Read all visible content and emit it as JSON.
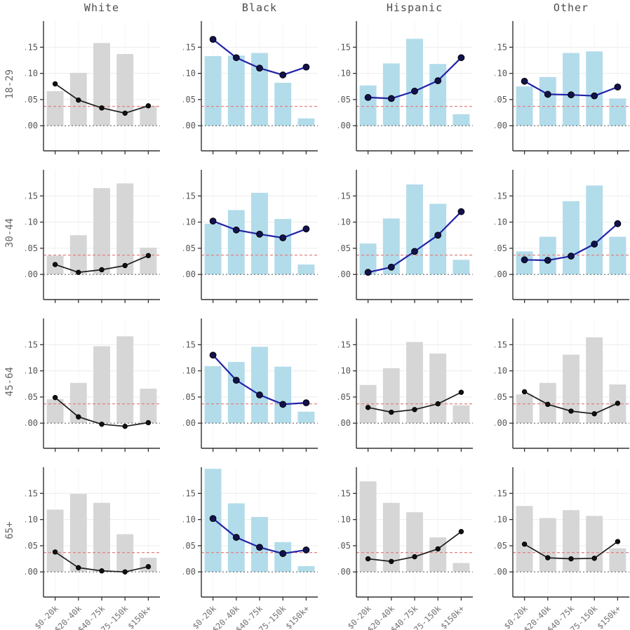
{
  "figure": {
    "background": "#ffffff"
  },
  "chart_data": {
    "type": "bar",
    "subtype": "small-multiples bar+line grid (4 rows x 4 columns)",
    "title": "",
    "columns": [
      "White",
      "Black",
      "Hispanic",
      "Other"
    ],
    "rows": [
      "18-29",
      "30-44",
      "45-64",
      "65+"
    ],
    "categories": [
      "$0-20k",
      "$20-40k",
      "$40-75k",
      "$75-150k",
      "$150k+"
    ],
    "xlabel": "",
    "ylabel": "",
    "yticks": [
      0.0,
      0.05,
      0.1,
      0.15
    ],
    "ytick_labels": [
      "0.00",
      "0.05",
      "0.10",
      "0.15"
    ],
    "ylim": [
      -0.048,
      0.2
    ],
    "grid": "horizontal light + faint vertical",
    "legend": "none",
    "reference_line_y": 0.037,
    "zero_line_y": 0.0,
    "colors": {
      "bar_default": "#d6d6d6",
      "bar_highlight": "#b2dcea",
      "line_default": "#1c1c1c",
      "marker_default": "#111111",
      "line_highlight": "#2222a6",
      "marker_highlight": "#12124f",
      "reference_line": "#e58080",
      "zero_line": "#666666",
      "grid_h": "#ececec",
      "grid_v": "#f5f5f5",
      "spine": "#333333",
      "tick_text": "#555555",
      "xtick_text": "#6e6e6e"
    },
    "cells": [
      [
        {
          "group": "White",
          "age": "18-29",
          "highlight": false,
          "bars": [
            0.066,
            0.101,
            0.158,
            0.137,
            0.038
          ],
          "line": [
            0.08,
            0.049,
            0.034,
            0.024,
            0.038
          ]
        },
        {
          "group": "Black",
          "age": "18-29",
          "highlight": true,
          "bars": [
            0.133,
            0.134,
            0.139,
            0.082,
            0.014
          ],
          "line": [
            0.165,
            0.13,
            0.11,
            0.097,
            0.112
          ]
        },
        {
          "group": "Hispanic",
          "age": "18-29",
          "highlight": true,
          "bars": [
            0.077,
            0.119,
            0.166,
            0.118,
            0.022
          ],
          "line": [
            0.054,
            0.052,
            0.066,
            0.086,
            0.13
          ]
        },
        {
          "group": "Other",
          "age": "18-29",
          "highlight": true,
          "bars": [
            0.075,
            0.093,
            0.139,
            0.142,
            0.052
          ],
          "line": [
            0.085,
            0.06,
            0.059,
            0.057,
            0.074
          ]
        }
      ],
      [
        {
          "group": "White",
          "age": "30-44",
          "highlight": false,
          "bars": [
            0.036,
            0.075,
            0.165,
            0.174,
            0.051
          ],
          "line": [
            0.019,
            0.004,
            0.009,
            0.017,
            0.036
          ]
        },
        {
          "group": "Black",
          "age": "30-44",
          "highlight": true,
          "bars": [
            0.097,
            0.123,
            0.156,
            0.106,
            0.019
          ],
          "line": [
            0.102,
            0.085,
            0.077,
            0.07,
            0.087
          ]
        },
        {
          "group": "Hispanic",
          "age": "30-44",
          "highlight": true,
          "bars": [
            0.059,
            0.107,
            0.172,
            0.135,
            0.028
          ],
          "line": [
            0.004,
            0.014,
            0.044,
            0.075,
            0.12
          ]
        },
        {
          "group": "Other",
          "age": "30-44",
          "highlight": true,
          "bars": [
            0.044,
            0.072,
            0.14,
            0.17,
            0.072
          ],
          "line": [
            0.028,
            0.027,
            0.035,
            0.058,
            0.097
          ]
        }
      ],
      [
        {
          "group": "White",
          "age": "45-64",
          "highlight": false,
          "bars": [
            0.046,
            0.077,
            0.147,
            0.166,
            0.066
          ],
          "line": [
            0.049,
            0.012,
            -0.002,
            -0.006,
            0.001
          ]
        },
        {
          "group": "Black",
          "age": "45-64",
          "highlight": true,
          "bars": [
            0.109,
            0.117,
            0.146,
            0.108,
            0.022
          ],
          "line": [
            0.13,
            0.082,
            0.054,
            0.036,
            0.039
          ]
        },
        {
          "group": "Hispanic",
          "age": "45-64",
          "highlight": false,
          "bars": [
            0.073,
            0.105,
            0.155,
            0.133,
            0.034
          ],
          "line": [
            0.03,
            0.021,
            0.026,
            0.037,
            0.059
          ]
        },
        {
          "group": "Other",
          "age": "45-64",
          "highlight": false,
          "bars": [
            0.055,
            0.077,
            0.131,
            0.164,
            0.074
          ],
          "line": [
            0.06,
            0.036,
            0.023,
            0.018,
            0.038
          ]
        }
      ],
      [
        {
          "group": "White",
          "age": "65+",
          "highlight": false,
          "bars": [
            0.119,
            0.149,
            0.132,
            0.072,
            0.027
          ],
          "line": [
            0.038,
            0.008,
            0.002,
            0.0,
            0.01
          ]
        },
        {
          "group": "Black",
          "age": "65+",
          "highlight": true,
          "bars": [
            0.197,
            0.131,
            0.105,
            0.057,
            0.011
          ],
          "line": [
            0.102,
            0.066,
            0.047,
            0.035,
            0.042
          ]
        },
        {
          "group": "Hispanic",
          "age": "65+",
          "highlight": false,
          "bars": [
            0.173,
            0.132,
            0.114,
            0.066,
            0.017
          ],
          "line": [
            0.025,
            0.02,
            0.029,
            0.044,
            0.077
          ]
        },
        {
          "group": "Other",
          "age": "65+",
          "highlight": false,
          "bars": [
            0.126,
            0.103,
            0.118,
            0.107,
            0.045
          ],
          "line": [
            0.053,
            0.027,
            0.025,
            0.026,
            0.058
          ]
        }
      ]
    ]
  }
}
